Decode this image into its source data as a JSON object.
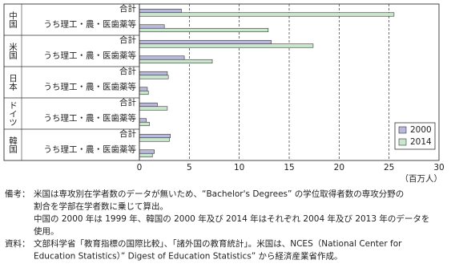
{
  "chart_data": {
    "type": "bar",
    "groups": [
      {
        "name": "中国",
        "categories": [
          "合計",
          "うち理工・農・医歯薬等"
        ]
      },
      {
        "name": "米国",
        "categories": [
          "合計",
          "うち理工・農・医歯薬等"
        ]
      },
      {
        "name": "日本",
        "categories": [
          "合計",
          "うち理工・農・医歯薬等"
        ]
      },
      {
        "name": "ドイツ",
        "categories": [
          "合計",
          "うち理工・農・医歯薬等"
        ]
      },
      {
        "name": "韓国",
        "categories": [
          "合計",
          "うち理工・農・医歯薬等"
        ]
      }
    ],
    "series": [
      {
        "name": "2000",
        "color": "#b9b9dd",
        "values": [
          4.2,
          2.5,
          13.2,
          4.5,
          2.8,
          0.8,
          1.8,
          0.7,
          3.1,
          1.5
        ]
      },
      {
        "name": "2014",
        "color": "#c9e7cc",
        "values": [
          25.5,
          12.9,
          17.4,
          7.3,
          2.9,
          0.9,
          2.8,
          1.0,
          3.0,
          1.3
        ]
      }
    ],
    "xlim": [
      0,
      30
    ],
    "xticks": [
      0,
      5,
      10,
      15,
      20,
      25,
      30
    ],
    "grid": true,
    "x_unit": "（百万人）",
    "legend": "bottom-right"
  },
  "notes": [
    {
      "label": "備考：",
      "lines": [
        "米国は専攻別在学者数のデータが無いため、“Bachelor's Degrees” の学位取得者数の専攻分野の",
        "割合を学部在学者数に乗じて算出。",
        "中国の 2000 年は 1999 年、韓国の 2000 年及び 2014 年はそれぞれ 2004 年及び 2013 年のデータを",
        "使用。"
      ]
    },
    {
      "label": "資料：",
      "lines": [
        "文部科学省「教育指標の国際比較」、「諸外国の教育統計」。米国は、NCES（National Center for",
        "Education Statistics）” Digest of Education Statistics” から経済産業省作成。"
      ]
    }
  ]
}
